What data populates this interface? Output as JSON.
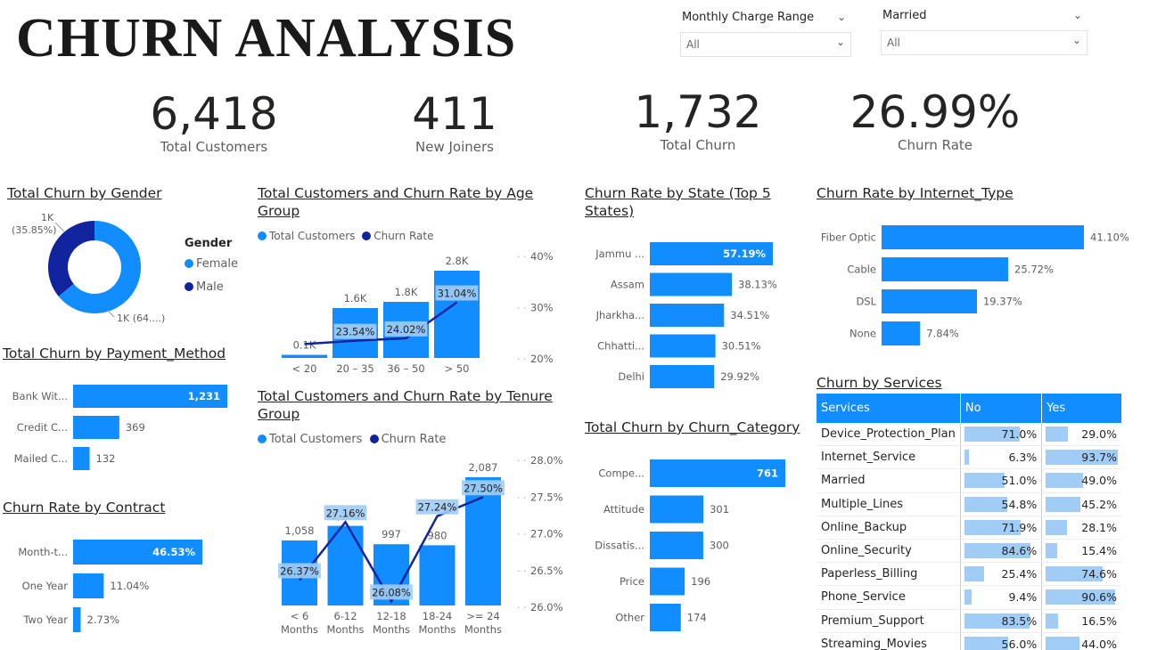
{
  "page": {
    "title": "CHURN ANALYSIS",
    "colors": {
      "primary": "#118DFF",
      "dark": "#12239E",
      "light": "#A0CCF5",
      "text": "#252423"
    }
  },
  "filters": [
    {
      "label": "Monthly Charge Range",
      "value": "All"
    },
    {
      "label": "Married",
      "value": "All"
    }
  ],
  "kpis": [
    {
      "value": "6,418",
      "label": "Total Customers"
    },
    {
      "value": "411",
      "label": "New Joiners"
    },
    {
      "value": "1,732",
      "label": "Total Churn"
    },
    {
      "value": "26.99%",
      "label": "Churn Rate"
    }
  ],
  "chart_data": [
    {
      "id": "gender",
      "type": "pie",
      "title": "Total Churn by Gender",
      "legend_title": "Gender",
      "categories": [
        "Female",
        "Male"
      ],
      "values": [
        1111,
        621
      ],
      "data_labels": [
        "1K (64....)",
        "1K\n(35.85%)"
      ],
      "colors": [
        "#118DFF",
        "#12239E"
      ],
      "legend_placement": "right"
    },
    {
      "id": "payment",
      "type": "bar",
      "orientation": "horizontal",
      "title": "Total Churn by Payment_Method",
      "categories": [
        "Bank Wit...",
        "Credit C...",
        "Mailed C..."
      ],
      "values": [
        1231,
        369,
        132
      ],
      "data_labels": [
        "1,231",
        "369",
        "132"
      ],
      "xlim": [
        0,
        1231
      ]
    },
    {
      "id": "contract",
      "type": "bar",
      "orientation": "horizontal",
      "title": "Churn Rate by Contract",
      "categories": [
        "Month-t...",
        "One Year",
        "Two Year"
      ],
      "values": [
        46.53,
        11.04,
        2.73
      ],
      "data_labels": [
        "46.53%",
        "11.04%",
        "2.73%"
      ],
      "xlim": [
        0,
        46.53
      ]
    },
    {
      "id": "age",
      "type": "bar",
      "title": "Total Customers and Churn Rate by Age Group",
      "legend": [
        "Total Customers",
        "Churn Rate"
      ],
      "legend_placement": "top-left",
      "categories": [
        "< 20",
        "20 – 35",
        "36 – 50",
        "> 50"
      ],
      "series": [
        {
          "name": "Total Customers",
          "values": [
            100,
            1600,
            1800,
            2800
          ],
          "labels": [
            "0.1K",
            "1.6K",
            "1.8K",
            "2.8K"
          ]
        },
        {
          "name": "Churn Rate",
          "values": [
            22.9,
            23.54,
            24.02,
            31.04
          ],
          "labels": [
            "",
            "23.54%",
            "24.02%",
            "31.04%"
          ]
        }
      ],
      "y2_ticks": [
        "40%",
        "30%",
        "20%"
      ],
      "y2_tick_values": [
        40,
        30,
        20
      ],
      "y2lim": [
        20,
        40
      ],
      "ylim": [
        0,
        2800
      ]
    },
    {
      "id": "tenure",
      "type": "bar",
      "title": "Total Customers and Churn Rate by Tenure Group",
      "legend": [
        "Total Customers",
        "Churn Rate"
      ],
      "legend_placement": "top-left",
      "categories": [
        "< 6\nMonths",
        "6-12\nMonths",
        "12-18\nMonths",
        "18-24\nMonths",
        ">= 24\nMonths"
      ],
      "series": [
        {
          "name": "Total Customers",
          "values": [
            1058,
            1296,
            997,
            980,
            2087
          ],
          "labels": [
            "1,058",
            "1,296",
            "997",
            "980",
            "2,087"
          ]
        },
        {
          "name": "Churn Rate",
          "values": [
            26.37,
            27.16,
            26.08,
            27.24,
            27.5
          ],
          "labels": [
            "26.37%",
            "27.16%",
            "26.08%",
            "27.24%",
            "27.50%"
          ]
        }
      ],
      "y2_ticks": [
        "28.0%",
        "27.5%",
        "27.0%",
        "26.5%",
        "26.0%"
      ],
      "y2_tick_values": [
        28.0,
        27.5,
        27.0,
        26.5,
        26.0
      ],
      "y2lim": [
        26.0,
        28.0
      ],
      "ylim": [
        0,
        2087
      ]
    },
    {
      "id": "state",
      "type": "bar",
      "orientation": "horizontal",
      "title": "Churn Rate by State (Top 5 States)",
      "categories": [
        "Jammu ...",
        "Assam",
        "Jharkha...",
        "Chhatti...",
        "Delhi"
      ],
      "values": [
        57.19,
        38.13,
        34.51,
        30.51,
        29.92
      ],
      "data_labels": [
        "57.19%",
        "38.13%",
        "34.51%",
        "30.51%",
        "29.92%"
      ],
      "xlim": [
        0,
        57.19
      ]
    },
    {
      "id": "category",
      "type": "bar",
      "orientation": "horizontal",
      "title": "Total Churn by Churn_Category",
      "categories": [
        "Compe...",
        "Attitude",
        "Dissatis...",
        "Price",
        "Other"
      ],
      "values": [
        761,
        301,
        300,
        196,
        174
      ],
      "data_labels": [
        "761",
        "301",
        "300",
        "196",
        "174"
      ],
      "xlim": [
        0,
        761
      ]
    },
    {
      "id": "internet",
      "type": "bar",
      "orientation": "horizontal",
      "title": "Churn Rate by Internet_Type",
      "categories": [
        "Fiber Optic",
        "Cable",
        "DSL",
        "None"
      ],
      "values": [
        41.1,
        25.72,
        19.37,
        7.84
      ],
      "data_labels": [
        "41.10%",
        "25.72%",
        "19.37%",
        "7.84%"
      ],
      "xlim": [
        0,
        41.1
      ]
    },
    {
      "id": "services",
      "type": "table",
      "title": "Churn by Services",
      "columns": [
        "Services",
        "No",
        "Yes"
      ],
      "rows": [
        [
          "Device_Protection_Plan",
          71.0,
          29.0
        ],
        [
          "Internet_Service",
          6.3,
          93.7
        ],
        [
          "Married",
          51.0,
          49.0
        ],
        [
          "Multiple_Lines",
          54.8,
          45.2
        ],
        [
          "Online_Backup",
          71.9,
          28.1
        ],
        [
          "Online_Security",
          84.6,
          15.4
        ],
        [
          "Paperless_Billing",
          25.4,
          74.6
        ],
        [
          "Phone_Service",
          9.4,
          90.6
        ],
        [
          "Premium_Support",
          83.5,
          16.5
        ],
        [
          "Streaming_Movies",
          56.0,
          44.0
        ]
      ],
      "row_labels": [
        [
          "71.0%",
          "29.0%"
        ],
        [
          "6.3%",
          "93.7%"
        ],
        [
          "51.0%",
          "49.0%"
        ],
        [
          "54.8%",
          "45.2%"
        ],
        [
          "71.9%",
          "28.1%"
        ],
        [
          "84.6%",
          "15.4%"
        ],
        [
          "25.4%",
          "74.6%"
        ],
        [
          "9.4%",
          "90.6%"
        ],
        [
          "83.5%",
          "16.5%"
        ],
        [
          "56.0%",
          "44.0%"
        ]
      ]
    }
  ]
}
